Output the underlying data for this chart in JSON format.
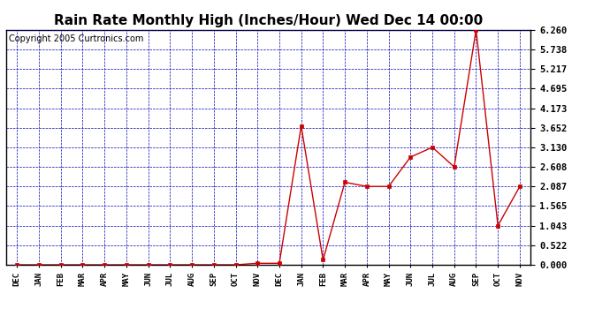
{
  "title": "Rain Rate Monthly High (Inches/Hour) Wed Dec 14 00:00",
  "copyright": "Copyright 2005 Curtronics.com",
  "x_labels": [
    "DEC",
    "JAN",
    "FEB",
    "MAR",
    "APR",
    "MAY",
    "JUN",
    "JUL",
    "AUG",
    "SEP",
    "OCT",
    "NOV",
    "DEC",
    "JAN",
    "FEB",
    "MAR",
    "APR",
    "MAY",
    "JUN",
    "JUL",
    "AUG",
    "SEP",
    "OCT",
    "NOV"
  ],
  "y_values": [
    0.0,
    0.0,
    0.0,
    0.0,
    0.0,
    0.0,
    0.0,
    0.0,
    0.0,
    0.0,
    0.0,
    0.04,
    0.04,
    3.7,
    0.13,
    2.2,
    2.087,
    2.087,
    2.87,
    3.13,
    2.608,
    6.26,
    1.043,
    2.087
  ],
  "y_ticks": [
    0.0,
    0.522,
    1.043,
    1.565,
    2.087,
    2.608,
    3.13,
    3.652,
    4.173,
    4.695,
    5.217,
    5.738,
    6.26
  ],
  "y_max": 6.26,
  "line_color": "#cc0000",
  "marker_color": "#cc0000",
  "bg_color": "#ffffff",
  "plot_bg": "#ffffff",
  "grid_color": "#0000bb",
  "title_fontsize": 11,
  "copyright_fontsize": 7
}
